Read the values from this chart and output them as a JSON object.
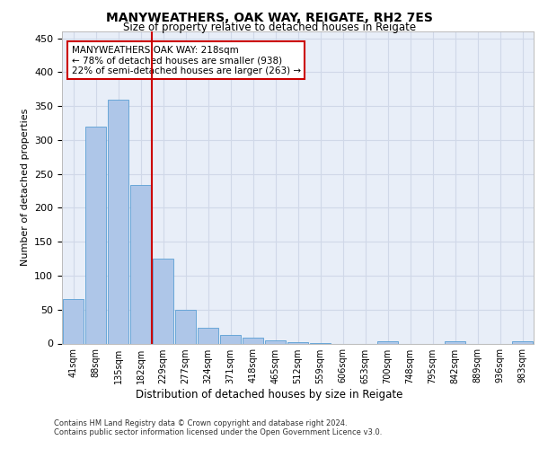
{
  "title1": "MANYWEATHERS, OAK WAY, REIGATE, RH2 7ES",
  "title2": "Size of property relative to detached houses in Reigate",
  "xlabel": "Distribution of detached houses by size in Reigate",
  "ylabel": "Number of detached properties",
  "categories": [
    "41sqm",
    "88sqm",
    "135sqm",
    "182sqm",
    "229sqm",
    "277sqm",
    "324sqm",
    "371sqm",
    "418sqm",
    "465sqm",
    "512sqm",
    "559sqm",
    "606sqm",
    "653sqm",
    "700sqm",
    "748sqm",
    "795sqm",
    "842sqm",
    "889sqm",
    "936sqm",
    "983sqm"
  ],
  "values": [
    65,
    320,
    360,
    234,
    125,
    50,
    23,
    13,
    8,
    4,
    2,
    1,
    0,
    0,
    3,
    0,
    0,
    3,
    0,
    0,
    3
  ],
  "bar_color": "#aec6e8",
  "bar_edge_color": "#5a9fd4",
  "vline_color": "#cc0000",
  "annotation_text": "MANYWEATHERS OAK WAY: 218sqm\n← 78% of detached houses are smaller (938)\n22% of semi-detached houses are larger (263) →",
  "annotation_box_color": "#ffffff",
  "annotation_box_edge": "#cc0000",
  "ylim": [
    0,
    460
  ],
  "yticks": [
    0,
    50,
    100,
    150,
    200,
    250,
    300,
    350,
    400,
    450
  ],
  "grid_color": "#d0d8e8",
  "background_color": "#e8eef8",
  "footer1": "Contains HM Land Registry data © Crown copyright and database right 2024.",
  "footer2": "Contains public sector information licensed under the Open Government Licence v3.0."
}
